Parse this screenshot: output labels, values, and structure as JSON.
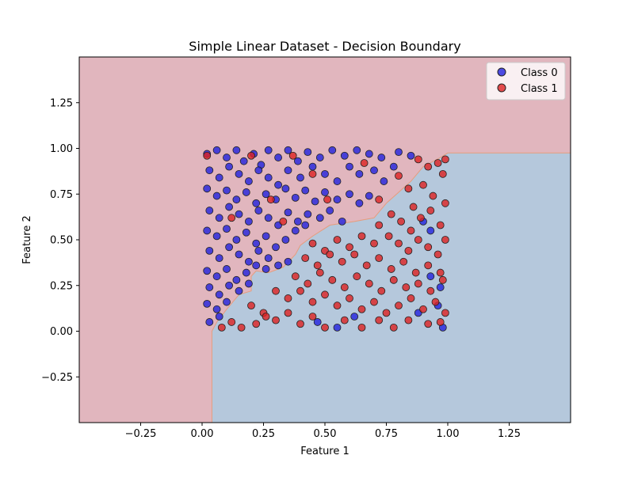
{
  "chart_data": {
    "type": "scatter",
    "title": "Simple Linear Dataset - Decision Boundary",
    "xlabel": "Feature 1",
    "ylabel": "Feature 2",
    "xlim": [
      -0.5,
      1.5
    ],
    "ylim": [
      -0.5,
      1.5
    ],
    "x_ticks": [
      -0.25,
      0.0,
      0.25,
      0.5,
      0.75,
      1.0,
      1.25
    ],
    "x_tick_labels": [
      "−0.25",
      "0.00",
      "0.25",
      "0.50",
      "0.75",
      "1.00",
      "1.25"
    ],
    "y_ticks": [
      -0.25,
      0.0,
      0.25,
      0.5,
      0.75,
      1.0,
      1.25
    ],
    "y_tick_labels": [
      "−0.25",
      "0.00",
      "0.25",
      "0.50",
      "0.75",
      "1.00",
      "1.25"
    ],
    "grid": false,
    "legend_position": "top-right",
    "colors": {
      "class0_region": "#b5c8dc",
      "class1_region": "#e1b6be",
      "boundary": "#e79c7c",
      "class0_point": "#2222dd",
      "class1_point": "#dd2222",
      "point_edge": "#222222"
    },
    "decision_regions": {
      "class_0_polygon": [
        [
          0.04,
          -0.5
        ],
        [
          1.5,
          -0.5
        ],
        [
          1.5,
          0.975
        ],
        [
          1.0,
          0.975
        ],
        [
          0.97,
          0.95
        ],
        [
          0.9,
          0.9
        ],
        [
          0.85,
          0.82
        ],
        [
          0.8,
          0.76
        ],
        [
          0.75,
          0.7
        ],
        [
          0.7,
          0.62
        ],
        [
          0.62,
          0.6
        ],
        [
          0.52,
          0.58
        ],
        [
          0.45,
          0.52
        ],
        [
          0.4,
          0.47
        ],
        [
          0.38,
          0.42
        ],
        [
          0.33,
          0.35
        ],
        [
          0.27,
          0.32
        ],
        [
          0.22,
          0.33
        ],
        [
          0.2,
          0.3
        ],
        [
          0.2,
          0.22
        ],
        [
          0.15,
          0.2
        ],
        [
          0.1,
          0.12
        ],
        [
          0.06,
          0.05
        ],
        [
          0.04,
          0.0
        ]
      ]
    },
    "series": [
      {
        "name": "Class 0",
        "points": [
          [
            0.02,
            0.97
          ],
          [
            0.06,
            0.99
          ],
          [
            0.1,
            0.95
          ],
          [
            0.14,
            0.99
          ],
          [
            0.17,
            0.93
          ],
          [
            0.21,
            0.97
          ],
          [
            0.24,
            0.91
          ],
          [
            0.27,
            0.99
          ],
          [
            0.31,
            0.95
          ],
          [
            0.35,
            0.99
          ],
          [
            0.39,
            0.93
          ],
          [
            0.43,
            0.98
          ],
          [
            0.48,
            0.95
          ],
          [
            0.53,
            0.99
          ],
          [
            0.58,
            0.96
          ],
          [
            0.63,
            0.99
          ],
          [
            0.68,
            0.97
          ],
          [
            0.73,
            0.95
          ],
          [
            0.8,
            0.98
          ],
          [
            0.85,
            0.96
          ],
          [
            0.03,
            0.88
          ],
          [
            0.07,
            0.84
          ],
          [
            0.11,
            0.9
          ],
          [
            0.15,
            0.86
          ],
          [
            0.19,
            0.82
          ],
          [
            0.23,
            0.88
          ],
          [
            0.27,
            0.84
          ],
          [
            0.31,
            0.8
          ],
          [
            0.35,
            0.88
          ],
          [
            0.4,
            0.84
          ],
          [
            0.45,
            0.9
          ],
          [
            0.5,
            0.86
          ],
          [
            0.55,
            0.82
          ],
          [
            0.6,
            0.9
          ],
          [
            0.64,
            0.86
          ],
          [
            0.7,
            0.88
          ],
          [
            0.74,
            0.82
          ],
          [
            0.78,
            0.9
          ],
          [
            0.02,
            0.78
          ],
          [
            0.06,
            0.74
          ],
          [
            0.1,
            0.77
          ],
          [
            0.14,
            0.72
          ],
          [
            0.18,
            0.76
          ],
          [
            0.22,
            0.7
          ],
          [
            0.26,
            0.75
          ],
          [
            0.3,
            0.72
          ],
          [
            0.34,
            0.78
          ],
          [
            0.38,
            0.73
          ],
          [
            0.42,
            0.77
          ],
          [
            0.46,
            0.71
          ],
          [
            0.5,
            0.76
          ],
          [
            0.55,
            0.72
          ],
          [
            0.6,
            0.75
          ],
          [
            0.64,
            0.7
          ],
          [
            0.68,
            0.74
          ],
          [
            0.03,
            0.66
          ],
          [
            0.07,
            0.62
          ],
          [
            0.11,
            0.68
          ],
          [
            0.15,
            0.64
          ],
          [
            0.19,
            0.6
          ],
          [
            0.23,
            0.66
          ],
          [
            0.27,
            0.62
          ],
          [
            0.31,
            0.58
          ],
          [
            0.35,
            0.65
          ],
          [
            0.39,
            0.6
          ],
          [
            0.43,
            0.64
          ],
          [
            0.48,
            0.62
          ],
          [
            0.52,
            0.66
          ],
          [
            0.57,
            0.6
          ],
          [
            0.02,
            0.55
          ],
          [
            0.06,
            0.52
          ],
          [
            0.1,
            0.56
          ],
          [
            0.14,
            0.5
          ],
          [
            0.18,
            0.54
          ],
          [
            0.22,
            0.48
          ],
          [
            0.26,
            0.52
          ],
          [
            0.3,
            0.46
          ],
          [
            0.34,
            0.5
          ],
          [
            0.38,
            0.55
          ],
          [
            0.42,
            0.58
          ],
          [
            0.03,
            0.44
          ],
          [
            0.07,
            0.4
          ],
          [
            0.11,
            0.46
          ],
          [
            0.15,
            0.42
          ],
          [
            0.19,
            0.38
          ],
          [
            0.23,
            0.44
          ],
          [
            0.27,
            0.4
          ],
          [
            0.31,
            0.36
          ],
          [
            0.35,
            0.38
          ],
          [
            0.02,
            0.33
          ],
          [
            0.06,
            0.3
          ],
          [
            0.1,
            0.34
          ],
          [
            0.14,
            0.28
          ],
          [
            0.18,
            0.32
          ],
          [
            0.22,
            0.36
          ],
          [
            0.26,
            0.34
          ],
          [
            0.03,
            0.24
          ],
          [
            0.07,
            0.2
          ],
          [
            0.11,
            0.25
          ],
          [
            0.15,
            0.22
          ],
          [
            0.19,
            0.26
          ],
          [
            0.02,
            0.15
          ],
          [
            0.06,
            0.12
          ],
          [
            0.1,
            0.16
          ],
          [
            0.03,
            0.05
          ],
          [
            0.07,
            0.08
          ],
          [
            0.47,
            0.05
          ],
          [
            0.55,
            0.02
          ],
          [
            0.62,
            0.08
          ],
          [
            0.98,
            0.02
          ],
          [
            0.97,
            0.24
          ],
          [
            0.93,
            0.3
          ],
          [
            0.96,
            0.14
          ],
          [
            0.9,
            0.6
          ],
          [
            0.93,
            0.55
          ],
          [
            0.88,
            0.1
          ]
        ]
      },
      {
        "name": "Class 1",
        "points": [
          [
            0.02,
            0.96
          ],
          [
            0.12,
            0.62
          ],
          [
            0.2,
            0.96
          ],
          [
            0.28,
            0.72
          ],
          [
            0.33,
            0.6
          ],
          [
            0.37,
            0.96
          ],
          [
            0.45,
            0.86
          ],
          [
            0.51,
            0.72
          ],
          [
            0.66,
            0.92
          ],
          [
            0.72,
            0.72
          ],
          [
            0.8,
            0.85
          ],
          [
            0.84,
            0.78
          ],
          [
            0.88,
            0.94
          ],
          [
            0.92,
            0.9
          ],
          [
            0.96,
            0.92
          ],
          [
            0.99,
            0.94
          ],
          [
            0.9,
            0.8
          ],
          [
            0.94,
            0.74
          ],
          [
            0.98,
            0.86
          ],
          [
            0.86,
            0.68
          ],
          [
            0.72,
            0.58
          ],
          [
            0.77,
            0.64
          ],
          [
            0.81,
            0.6
          ],
          [
            0.85,
            0.55
          ],
          [
            0.89,
            0.62
          ],
          [
            0.93,
            0.66
          ],
          [
            0.97,
            0.58
          ],
          [
            0.99,
            0.7
          ],
          [
            0.76,
            0.52
          ],
          [
            0.8,
            0.48
          ],
          [
            0.84,
            0.44
          ],
          [
            0.88,
            0.5
          ],
          [
            0.92,
            0.46
          ],
          [
            0.96,
            0.42
          ],
          [
            0.99,
            0.5
          ],
          [
            0.45,
            0.48
          ],
          [
            0.5,
            0.44
          ],
          [
            0.55,
            0.5
          ],
          [
            0.6,
            0.46
          ],
          [
            0.65,
            0.52
          ],
          [
            0.7,
            0.48
          ],
          [
            0.42,
            0.4
          ],
          [
            0.47,
            0.36
          ],
          [
            0.52,
            0.42
          ],
          [
            0.57,
            0.38
          ],
          [
            0.62,
            0.42
          ],
          [
            0.67,
            0.36
          ],
          [
            0.72,
            0.4
          ],
          [
            0.77,
            0.34
          ],
          [
            0.82,
            0.38
          ],
          [
            0.87,
            0.32
          ],
          [
            0.92,
            0.36
          ],
          [
            0.97,
            0.32
          ],
          [
            0.38,
            0.3
          ],
          [
            0.43,
            0.26
          ],
          [
            0.48,
            0.32
          ],
          [
            0.53,
            0.28
          ],
          [
            0.58,
            0.24
          ],
          [
            0.63,
            0.3
          ],
          [
            0.68,
            0.26
          ],
          [
            0.73,
            0.22
          ],
          [
            0.78,
            0.28
          ],
          [
            0.83,
            0.24
          ],
          [
            0.88,
            0.26
          ],
          [
            0.93,
            0.22
          ],
          [
            0.98,
            0.28
          ],
          [
            0.3,
            0.22
          ],
          [
            0.35,
            0.18
          ],
          [
            0.4,
            0.22
          ],
          [
            0.45,
            0.16
          ],
          [
            0.5,
            0.2
          ],
          [
            0.55,
            0.14
          ],
          [
            0.6,
            0.18
          ],
          [
            0.65,
            0.12
          ],
          [
            0.7,
            0.16
          ],
          [
            0.75,
            0.1
          ],
          [
            0.8,
            0.14
          ],
          [
            0.85,
            0.18
          ],
          [
            0.9,
            0.12
          ],
          [
            0.95,
            0.16
          ],
          [
            0.99,
            0.1
          ],
          [
            0.2,
            0.14
          ],
          [
            0.25,
            0.1
          ],
          [
            0.3,
            0.06
          ],
          [
            0.35,
            0.1
          ],
          [
            0.4,
            0.04
          ],
          [
            0.45,
            0.08
          ],
          [
            0.5,
            0.02
          ],
          [
            0.58,
            0.06
          ],
          [
            0.65,
            0.02
          ],
          [
            0.72,
            0.06
          ],
          [
            0.78,
            0.02
          ],
          [
            0.84,
            0.06
          ],
          [
            0.92,
            0.04
          ],
          [
            0.97,
            0.05
          ],
          [
            0.12,
            0.05
          ],
          [
            0.16,
            0.02
          ],
          [
            0.22,
            0.04
          ],
          [
            0.26,
            0.08
          ],
          [
            0.08,
            0.02
          ]
        ]
      }
    ]
  }
}
